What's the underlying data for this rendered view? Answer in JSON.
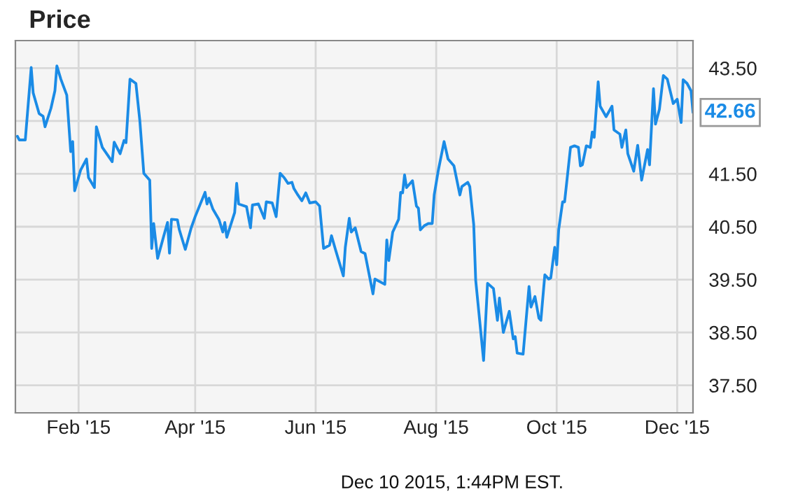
{
  "chart_data": {
    "type": "line",
    "title": "Price",
    "x": [
      "2015-01-01",
      "2015-01-02",
      "2015-01-05",
      "2015-01-08",
      "2015-01-09",
      "2015-01-12",
      "2015-01-14",
      "2015-01-15",
      "2015-01-18",
      "2015-01-20",
      "2015-01-21",
      "2015-01-23",
      "2015-01-26",
      "2015-01-28",
      "2015-01-29",
      "2015-01-30",
      "2015-02-02",
      "2015-02-05",
      "2015-02-06",
      "2015-02-09",
      "2015-02-10",
      "2015-02-13",
      "2015-02-18",
      "2015-02-19",
      "2015-02-22",
      "2015-02-24",
      "2015-02-25",
      "2015-02-27",
      "2015-03-02",
      "2015-03-04",
      "2015-03-06",
      "2015-03-09",
      "2015-03-10",
      "2015-03-11",
      "2015-03-13",
      "2015-03-16",
      "2015-03-18",
      "2015-03-19",
      "2015-03-20",
      "2015-03-23",
      "2015-03-24",
      "2015-03-27",
      "2015-03-30",
      "2015-04-01",
      "2015-04-06",
      "2015-04-07",
      "2015-04-08",
      "2015-04-10",
      "2015-04-13",
      "2015-04-15",
      "2015-04-16",
      "2015-04-17",
      "2015-04-21",
      "2015-04-22",
      "2015-04-23",
      "2015-04-27",
      "2015-04-29",
      "2015-04-30",
      "2015-05-03",
      "2015-05-06",
      "2015-05-07",
      "2015-05-10",
      "2015-05-12",
      "2015-05-14",
      "2015-05-16",
      "2015-05-18",
      "2015-05-20",
      "2015-05-21",
      "2015-05-23",
      "2015-05-25",
      "2015-05-27",
      "2015-05-29",
      "2015-06-01",
      "2015-06-03",
      "2015-06-05",
      "2015-06-08",
      "2015-06-09",
      "2015-06-11",
      "2015-06-15",
      "2015-06-16",
      "2015-06-18",
      "2015-06-19",
      "2015-06-21",
      "2015-06-24",
      "2015-06-26",
      "2015-06-30",
      "2015-07-01",
      "2015-07-06",
      "2015-07-07",
      "2015-07-08",
      "2015-07-10",
      "2015-07-13",
      "2015-07-14",
      "2015-07-15",
      "2015-07-16",
      "2015-07-17",
      "2015-07-20",
      "2015-07-22",
      "2015-07-23",
      "2015-07-24",
      "2015-07-26",
      "2015-07-28",
      "2015-07-30",
      "2015-07-31",
      "2015-08-02",
      "2015-08-05",
      "2015-08-07",
      "2015-08-10",
      "2015-08-13",
      "2015-08-14",
      "2015-08-17",
      "2015-08-18",
      "2015-08-20",
      "2015-08-21",
      "2015-08-25",
      "2015-08-27",
      "2015-08-30",
      "2015-09-01",
      "2015-09-02",
      "2015-09-04",
      "2015-09-07",
      "2015-09-09",
      "2015-09-10",
      "2015-09-11",
      "2015-09-14",
      "2015-09-17",
      "2015-09-18",
      "2015-09-20",
      "2015-09-22",
      "2015-09-23",
      "2015-09-25",
      "2015-09-27",
      "2015-09-28",
      "2015-09-30",
      "2015-10-01",
      "2015-10-02",
      "2015-10-04",
      "2015-10-05",
      "2015-10-08",
      "2015-10-10",
      "2015-10-12",
      "2015-10-13",
      "2015-10-14",
      "2015-10-16",
      "2015-10-18",
      "2015-10-19",
      "2015-10-20",
      "2015-10-22",
      "2015-10-23",
      "2015-10-26",
      "2015-10-29",
      "2015-10-30",
      "2015-11-02",
      "2015-11-03",
      "2015-11-05",
      "2015-11-06",
      "2015-11-09",
      "2015-11-11",
      "2015-11-13",
      "2015-11-16",
      "2015-11-17",
      "2015-11-19",
      "2015-11-20",
      "2015-11-22",
      "2015-11-24",
      "2015-11-26",
      "2015-11-29",
      "2015-12-01",
      "2015-12-03",
      "2015-12-04",
      "2015-12-06",
      "2015-12-08",
      "2015-12-09"
    ],
    "series": [
      {
        "color": "#1a8be6",
        "values": [
          42.21,
          42.14,
          42.14,
          43.51,
          43.03,
          42.64,
          42.59,
          42.39,
          42.74,
          43.07,
          43.54,
          43.29,
          42.99,
          41.92,
          42.11,
          41.18,
          41.57,
          41.78,
          41.43,
          41.24,
          42.39,
          42.0,
          41.73,
          42.1,
          41.88,
          42.13,
          42.09,
          43.29,
          43.21,
          42.5,
          41.51,
          41.38,
          40.09,
          40.56,
          39.9,
          40.31,
          40.58,
          40.0,
          40.64,
          40.63,
          40.44,
          40.07,
          40.48,
          40.69,
          41.15,
          40.93,
          41.04,
          40.83,
          40.64,
          40.4,
          40.58,
          40.3,
          40.77,
          41.32,
          40.93,
          40.88,
          40.48,
          40.91,
          40.93,
          40.66,
          40.97,
          40.95,
          40.69,
          41.51,
          41.43,
          41.32,
          41.34,
          41.22,
          41.1,
          40.99,
          41.14,
          40.95,
          40.97,
          40.89,
          40.09,
          40.15,
          40.33,
          40.07,
          39.57,
          40.11,
          40.66,
          40.4,
          40.48,
          40.03,
          39.99,
          39.23,
          39.51,
          39.41,
          40.25,
          39.86,
          40.4,
          40.64,
          41.15,
          41.14,
          41.48,
          41.24,
          41.37,
          40.89,
          40.85,
          40.44,
          40.52,
          40.56,
          40.56,
          41.1,
          41.55,
          42.11,
          41.78,
          41.65,
          41.1,
          41.26,
          41.34,
          41.26,
          40.54,
          39.49,
          37.97,
          39.43,
          39.33,
          38.73,
          39.15,
          38.5,
          38.9,
          38.38,
          38.42,
          38.11,
          38.09,
          39.37,
          38.98,
          39.18,
          38.77,
          38.73,
          39.59,
          39.51,
          39.53,
          40.11,
          39.78,
          40.44,
          40.97,
          40.97,
          42.0,
          42.03,
          42.0,
          41.65,
          41.67,
          42.03,
          42.0,
          42.29,
          42.19,
          43.24,
          42.78,
          42.58,
          42.78,
          42.33,
          42.25,
          42.0,
          42.33,
          41.88,
          41.55,
          42.04,
          41.38,
          41.96,
          41.67,
          43.11,
          42.44,
          42.72,
          43.36,
          43.29,
          42.83,
          42.91,
          42.47,
          43.28,
          43.21,
          43.07,
          42.66
        ]
      }
    ],
    "xlim": [
      "2014-12-31",
      "2015-12-09"
    ],
    "xticks": [
      {
        "value": "2015-02-01",
        "label": "Feb '15"
      },
      {
        "value": "2015-04-01",
        "label": "Apr '15"
      },
      {
        "value": "2015-06-01",
        "label": "Jun '15"
      },
      {
        "value": "2015-08-01",
        "label": "Aug '15"
      },
      {
        "value": "2015-10-01",
        "label": "Oct '15"
      },
      {
        "value": "2015-12-01",
        "label": "Dec '15"
      }
    ],
    "ylim": [
      36.98,
      44.02
    ],
    "yticks": [
      {
        "value": 37.5,
        "label": "37.50"
      },
      {
        "value": 38.5,
        "label": "38.50"
      },
      {
        "value": 39.5,
        "label": "39.50"
      },
      {
        "value": 40.5,
        "label": "40.50"
      },
      {
        "value": 41.5,
        "label": "41.50"
      },
      {
        "value": 42.5,
        "label": null
      },
      {
        "value": 43.5,
        "label": "43.50"
      }
    ],
    "grid": true,
    "annotations": [
      {
        "text": "42.66",
        "x": "2015-12-09",
        "y": 42.66
      },
      "Dec 10 2015, 1:44PM EST."
    ]
  }
}
